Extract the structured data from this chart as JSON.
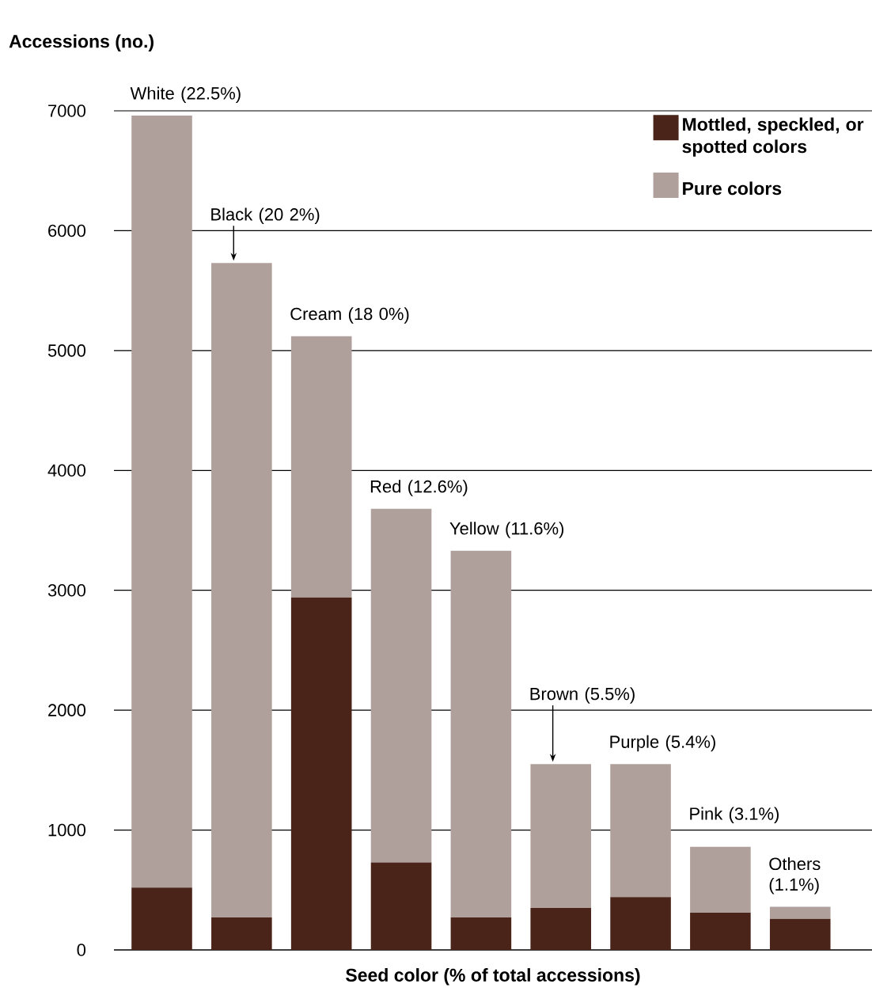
{
  "chart_data": {
    "type": "bar",
    "stacked": true,
    "ylabel": "Accessions (no.)",
    "xlabel": "Seed color (% of total accessions)",
    "categories": [
      "White (22.5%)",
      "Black (20 2%)",
      "Cream (18 0%)",
      "Red (12.6%)",
      "Yellow (11.6%)",
      "Brown (5.5%)",
      "Purple (5.4%)",
      "Pink (3.1%)",
      "Others (1.1%)"
    ],
    "series": [
      {
        "name": "Mottled, speckled, or spotted colors",
        "color": "#4a2418",
        "values": [
          520,
          270,
          2940,
          730,
          270,
          350,
          440,
          310,
          260
        ]
      },
      {
        "name": "Pure colors",
        "color": "#b0a09c",
        "values": [
          6440,
          5460,
          2180,
          2950,
          3060,
          1200,
          1110,
          550,
          100
        ]
      }
    ],
    "ylim": [
      0,
      7000
    ],
    "yticks": [
      0,
      1000,
      2000,
      3000,
      4000,
      5000,
      6000,
      7000
    ],
    "grid": "y",
    "legend": "top right"
  }
}
